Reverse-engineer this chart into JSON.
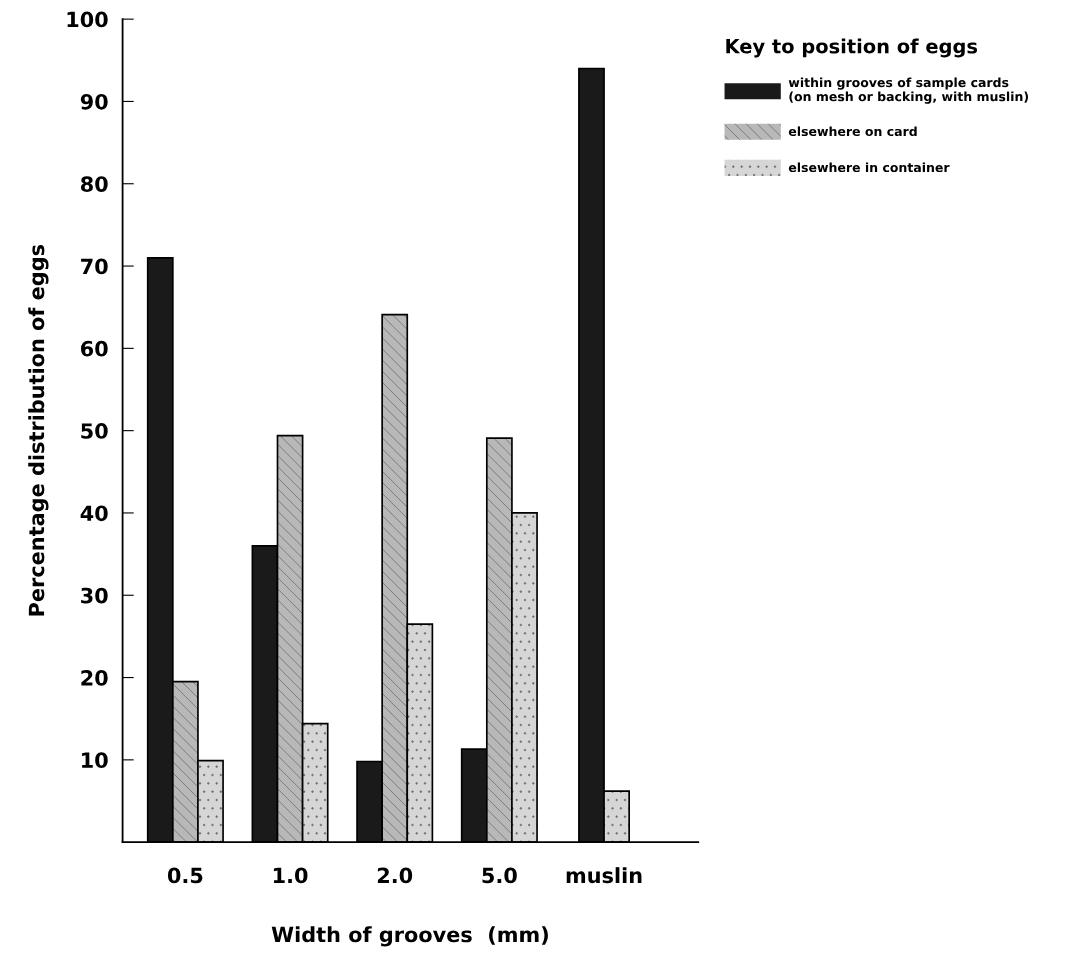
{
  "chart_data": {
    "type": "bar",
    "xlabel": "Width of grooves  (mm)",
    "ylabel": "Percentage distribution of eggs",
    "categories": [
      "0.5",
      "1.0",
      "2.0",
      "5.0",
      "muslin"
    ],
    "series": [
      {
        "name": "within grooves of sample cards\n(on mesh or backing, with muslin)",
        "color": "#1a1a1a",
        "values": [
          71,
          36,
          9.8,
          11.3,
          94
        ]
      },
      {
        "name": "elsewhere on card",
        "color": "#b8b8b8",
        "values": [
          19.5,
          49.4,
          64.1,
          49.1,
          null
        ]
      },
      {
        "name": "elsewhere in container",
        "color": "#d6d6d6",
        "values": [
          9.9,
          14.4,
          26.5,
          40,
          6.2
        ]
      }
    ],
    "legend_title": "Key to position of eggs",
    "legend": "right",
    "ylim": [
      0,
      100
    ],
    "yticks": [
      10,
      20,
      30,
      40,
      50,
      60,
      70,
      80,
      90,
      100
    ],
    "grid": false
  }
}
